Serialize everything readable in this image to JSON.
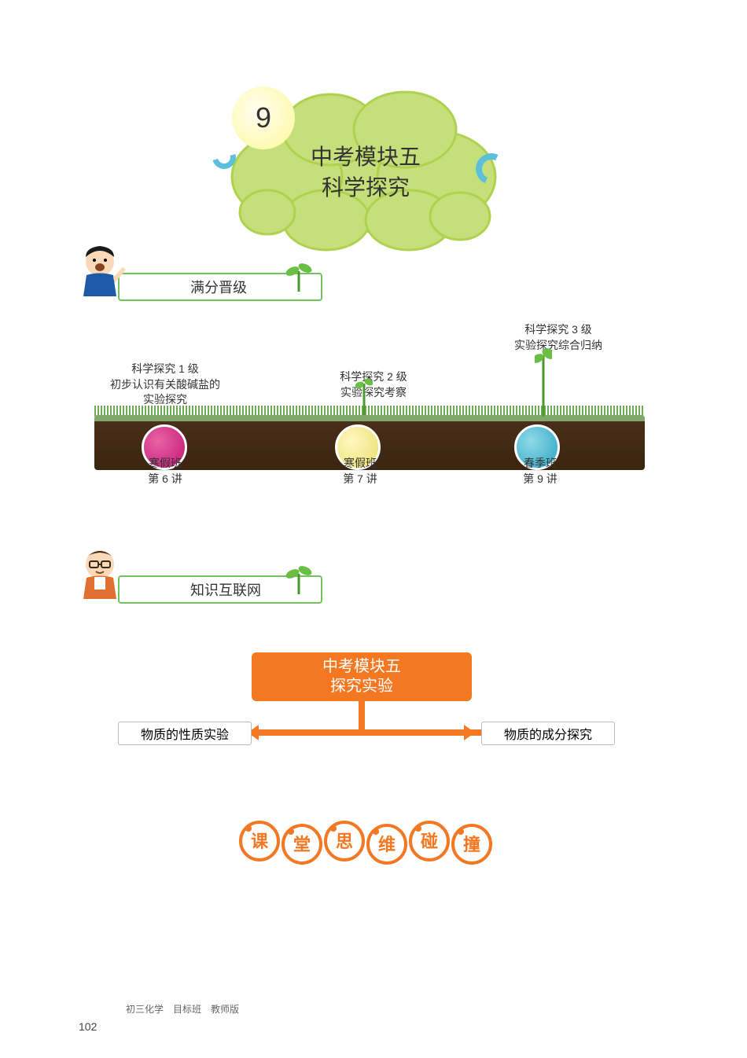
{
  "title_cloud": {
    "number": "9",
    "line1": "中考模块五",
    "line2": "科学探究",
    "cloud_fill": "#c5e07a",
    "cloud_stroke": "#aed14e",
    "badge_fill": "#fef89a",
    "accent_color": "#5dc0db"
  },
  "section_header_1": {
    "label": "满分晋级",
    "border_color": "#70c45a"
  },
  "progression": {
    "soil_top": "#7fa86a",
    "soil_dark": "#3a2510",
    "grass_color": "#5fa040",
    "levels": [
      {
        "title": "科学探究 1 级",
        "subtitle": "初步认识有关酸碱盐的\n实验探究",
        "below_line1": "寒假班",
        "below_line2": "第 6 讲",
        "bulb_color": "#c21573"
      },
      {
        "title": "科学探究 2 级",
        "subtitle": "实验探究考察",
        "below_line1": "寒假班",
        "below_line2": "第 7 讲",
        "bulb_color": "#e8dd6a"
      },
      {
        "title": "科学探究 3 级",
        "subtitle": "实验探究综合归纳",
        "below_line1": "春季班",
        "below_line2": "第 9 讲",
        "bulb_color": "#2ba5c4"
      }
    ]
  },
  "section_header_2": {
    "label": "知识互联网",
    "border_color": "#70c45a"
  },
  "diagram": {
    "top_line1": "中考模块五",
    "top_line2": "探究实验",
    "left_box": "物质的性质实验",
    "right_box": "物质的成分探究",
    "accent": "#f47721",
    "box_border": "#bbbbbb"
  },
  "decorative_title": {
    "text": "课堂思维碰撞",
    "fill": "#f47721",
    "chars": [
      "课",
      "堂",
      "思",
      "维",
      "碰",
      "撞"
    ]
  },
  "footer": {
    "edition": "初三化学　目标班　教师版",
    "page": "102"
  }
}
